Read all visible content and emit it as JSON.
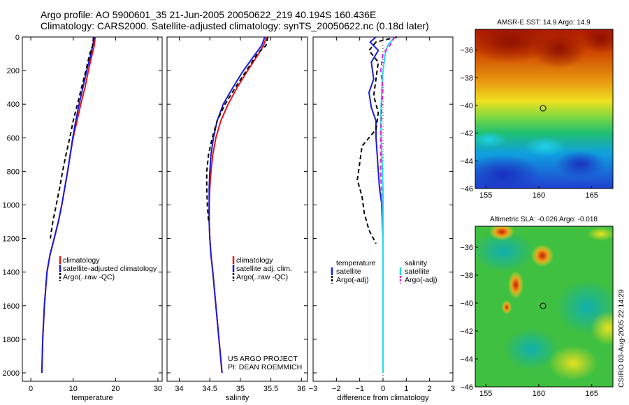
{
  "title_line1": "Argo profile: AO 5900601_35 21-Jun-2005 20050622_219 40.194S 160.436E",
  "title_line2": "Climatology: CARS2000. Satellite-adjusted climatology: synTS_20050622.nc (0.18d later)",
  "credit_line1": "US ARGO PROJECT",
  "credit_line2": "PI: DEAN ROEMMICH",
  "side_label": "CSIRO 03-Aug-2005 22:14:29",
  "colors": {
    "climatology": "#e8141a",
    "satellite": "#1a1ae0",
    "argo": "#000000",
    "sal_satellite": "#22d8e8",
    "sal_argo": "#e020d8"
  },
  "chart_data": [
    {
      "type": "line",
      "xlabel": "temperature",
      "ylabel": "",
      "xlim": [
        -2,
        31
      ],
      "ylim": [
        2050,
        0
      ],
      "x_ticks": [
        0,
        10,
        20,
        30
      ],
      "y_ticks": [
        0,
        200,
        400,
        600,
        800,
        1000,
        1200,
        1400,
        1600,
        1800,
        2000
      ],
      "series": [
        {
          "name": "climatology",
          "style": "solid",
          "color": "#e8141a",
          "x": [
            15.2,
            15.0,
            14.5,
            13.6,
            12.8,
            11.8,
            10.9,
            10.0,
            9.3,
            8.7,
            8.0,
            7.3,
            6.5,
            5.5,
            4.5,
            3.8,
            3.2,
            2.8,
            2.6
          ],
          "y": [
            0,
            50,
            100,
            200,
            300,
            400,
            500,
            600,
            700,
            800,
            900,
            1000,
            1100,
            1200,
            1300,
            1400,
            1600,
            1800,
            2000
          ]
        },
        {
          "name": "satellite-adjusted climatology",
          "style": "solid",
          "color": "#1a1ae0",
          "x": [
            15.0,
            14.6,
            14.2,
            13.2,
            12.3,
            11.4,
            10.6,
            9.9,
            9.3,
            8.7,
            8.0,
            7.3,
            6.5,
            5.5,
            4.5,
            3.8,
            3.2,
            2.8,
            2.6
          ],
          "y": [
            0,
            50,
            100,
            200,
            300,
            400,
            500,
            600,
            700,
            800,
            900,
            1000,
            1100,
            1200,
            1300,
            1400,
            1600,
            1800,
            2000
          ]
        },
        {
          "name": "Argo(..raw -QC)",
          "style": "dashed",
          "color": "#000000",
          "x": [
            14.8,
            14.6,
            13.9,
            13.0,
            12.0,
            11.0,
            10.0,
            9.2,
            8.3,
            7.5,
            6.8,
            6.0,
            5.2,
            4.6
          ],
          "y": [
            0,
            50,
            100,
            200,
            300,
            400,
            500,
            600,
            700,
            800,
            900,
            1000,
            1100,
            1200
          ]
        }
      ],
      "legend": [
        "climatology",
        "satellite-adjusted climatology",
        "Argo(..raw -QC)"
      ]
    },
    {
      "type": "line",
      "xlabel": "salinity",
      "ylabel": "",
      "xlim": [
        33.8,
        36.1
      ],
      "ylim": [
        2050,
        0
      ],
      "x_ticks": [
        34,
        34.5,
        35,
        35.5,
        36
      ],
      "y_ticks": [
        0,
        200,
        400,
        600,
        800,
        1000,
        1200,
        1400,
        1600,
        1800,
        2000
      ],
      "series": [
        {
          "name": "climatology",
          "style": "solid",
          "color": "#e8141a",
          "x": [
            35.43,
            35.38,
            35.3,
            35.12,
            34.95,
            34.8,
            34.68,
            34.6,
            34.55,
            34.52,
            34.5,
            34.49,
            34.49,
            34.5,
            34.52,
            34.55,
            34.6,
            34.65,
            34.7
          ],
          "y": [
            0,
            50,
            100,
            200,
            300,
            400,
            500,
            600,
            700,
            800,
            900,
            1000,
            1100,
            1200,
            1300,
            1400,
            1600,
            1800,
            2000
          ]
        },
        {
          "name": "satellite adj. clim.",
          "style": "solid",
          "color": "#1a1ae0",
          "x": [
            35.4,
            35.35,
            35.25,
            35.05,
            34.88,
            34.72,
            34.62,
            34.56,
            34.52,
            34.5,
            34.49,
            34.49,
            34.49,
            34.5,
            34.52,
            34.55,
            34.6,
            34.65,
            34.7
          ],
          "y": [
            0,
            50,
            100,
            200,
            300,
            400,
            500,
            600,
            700,
            800,
            900,
            1000,
            1100,
            1200,
            1300,
            1400,
            1600,
            1800,
            2000
          ]
        },
        {
          "name": "Argo(..raw -QC)",
          "style": "dashed",
          "color": "#000000",
          "x": [
            35.45,
            35.42,
            35.28,
            35.1,
            34.92,
            34.75,
            34.62,
            34.54,
            34.48,
            34.45,
            34.45,
            34.46,
            34.48
          ],
          "y": [
            0,
            50,
            100,
            200,
            300,
            400,
            500,
            600,
            700,
            800,
            900,
            1000,
            1100
          ]
        }
      ],
      "legend": [
        "climatology",
        "satellite adj. clim.",
        "Argo(..raw -QC)"
      ]
    },
    {
      "type": "line",
      "xlabel": "difference from climatology",
      "ylabel": "",
      "xlim": [
        -3,
        3
      ],
      "ylim": [
        2050,
        0
      ],
      "x_ticks": [
        -3,
        -2,
        -1,
        0,
        1,
        2,
        3
      ],
      "y_ticks": [
        0,
        200,
        400,
        600,
        800,
        1000,
        1200,
        1400,
        1600,
        1800,
        2000
      ],
      "reference_line_x": 0,
      "series": [
        {
          "name": "temperature satellite",
          "style": "solid",
          "color": "#1a1ae0",
          "x": [
            -0.3,
            -0.55,
            -0.2,
            -0.5,
            -0.4,
            -0.6,
            -0.5,
            -0.3,
            -0.3,
            -0.25,
            -0.2,
            -0.15,
            -0.05,
            0.0,
            0.0,
            0.0,
            0.0
          ],
          "y": [
            0,
            30,
            80,
            150,
            250,
            330,
            420,
            500,
            600,
            700,
            800,
            900,
            1000,
            1200,
            1400,
            1600,
            1800
          ]
        },
        {
          "name": "temperature Argo(-adj)",
          "style": "dashed",
          "color": "#000000",
          "x": [
            0.6,
            -0.3,
            -0.6,
            -0.2,
            -0.3,
            -0.4,
            -0.2,
            -0.3,
            -0.9,
            -1.0,
            -1.1,
            -0.9,
            -0.8,
            -0.6,
            -0.3
          ],
          "y": [
            0,
            30,
            80,
            150,
            250,
            350,
            450,
            550,
            650,
            750,
            850,
            950,
            1050,
            1150,
            1230
          ]
        },
        {
          "name": "salinity satellite",
          "style": "solid",
          "color": "#22d8e8",
          "x": [
            0.5,
            0.2,
            0.1,
            0.0,
            -0.05,
            -0.1,
            -0.05,
            0.0,
            0.0,
            0.0,
            0.0
          ],
          "y": [
            0,
            50,
            100,
            200,
            300,
            500,
            700,
            900,
            1200,
            1600,
            2000
          ]
        },
        {
          "name": "salinity Argo(-adj)",
          "style": "dashed",
          "color": "#e020d8",
          "x": [
            0.5,
            0.3,
            0.0,
            -0.1,
            0.0,
            -0.05,
            -0.1,
            -0.1,
            -0.05
          ],
          "y": [
            0,
            50,
            100,
            200,
            300,
            400,
            600,
            800,
            1000
          ]
        }
      ],
      "legend_left_title": "temperature",
      "legend_left": [
        "satellite",
        "Argo(-adj)"
      ],
      "legend_right_title": "salinity",
      "legend_right": [
        "satellite",
        "Argo(-adj)"
      ]
    },
    {
      "type": "heatmap",
      "title": "AMSR-E SST: 14.9 Argo: 14.9",
      "xlim": [
        154,
        167
      ],
      "ylim": [
        -46,
        -34.5
      ],
      "x_ticks": [
        155,
        160,
        165
      ],
      "y_ticks": [
        -36,
        -38,
        -40,
        -42,
        -44,
        -46
      ],
      "marker": {
        "x": 160.4,
        "y": -40.2
      },
      "colormap": "jet"
    },
    {
      "type": "heatmap",
      "title": "Altimetric SLA: -0.026 Argo: -0.018",
      "xlim": [
        154,
        167
      ],
      "ylim": [
        -46,
        -34.5
      ],
      "x_ticks": [
        155,
        160,
        165
      ],
      "y_ticks": [
        -36,
        -38,
        -40,
        -42,
        -44,
        -46
      ],
      "marker": {
        "x": 160.4,
        "y": -40.2
      },
      "colormap": "jet"
    }
  ]
}
